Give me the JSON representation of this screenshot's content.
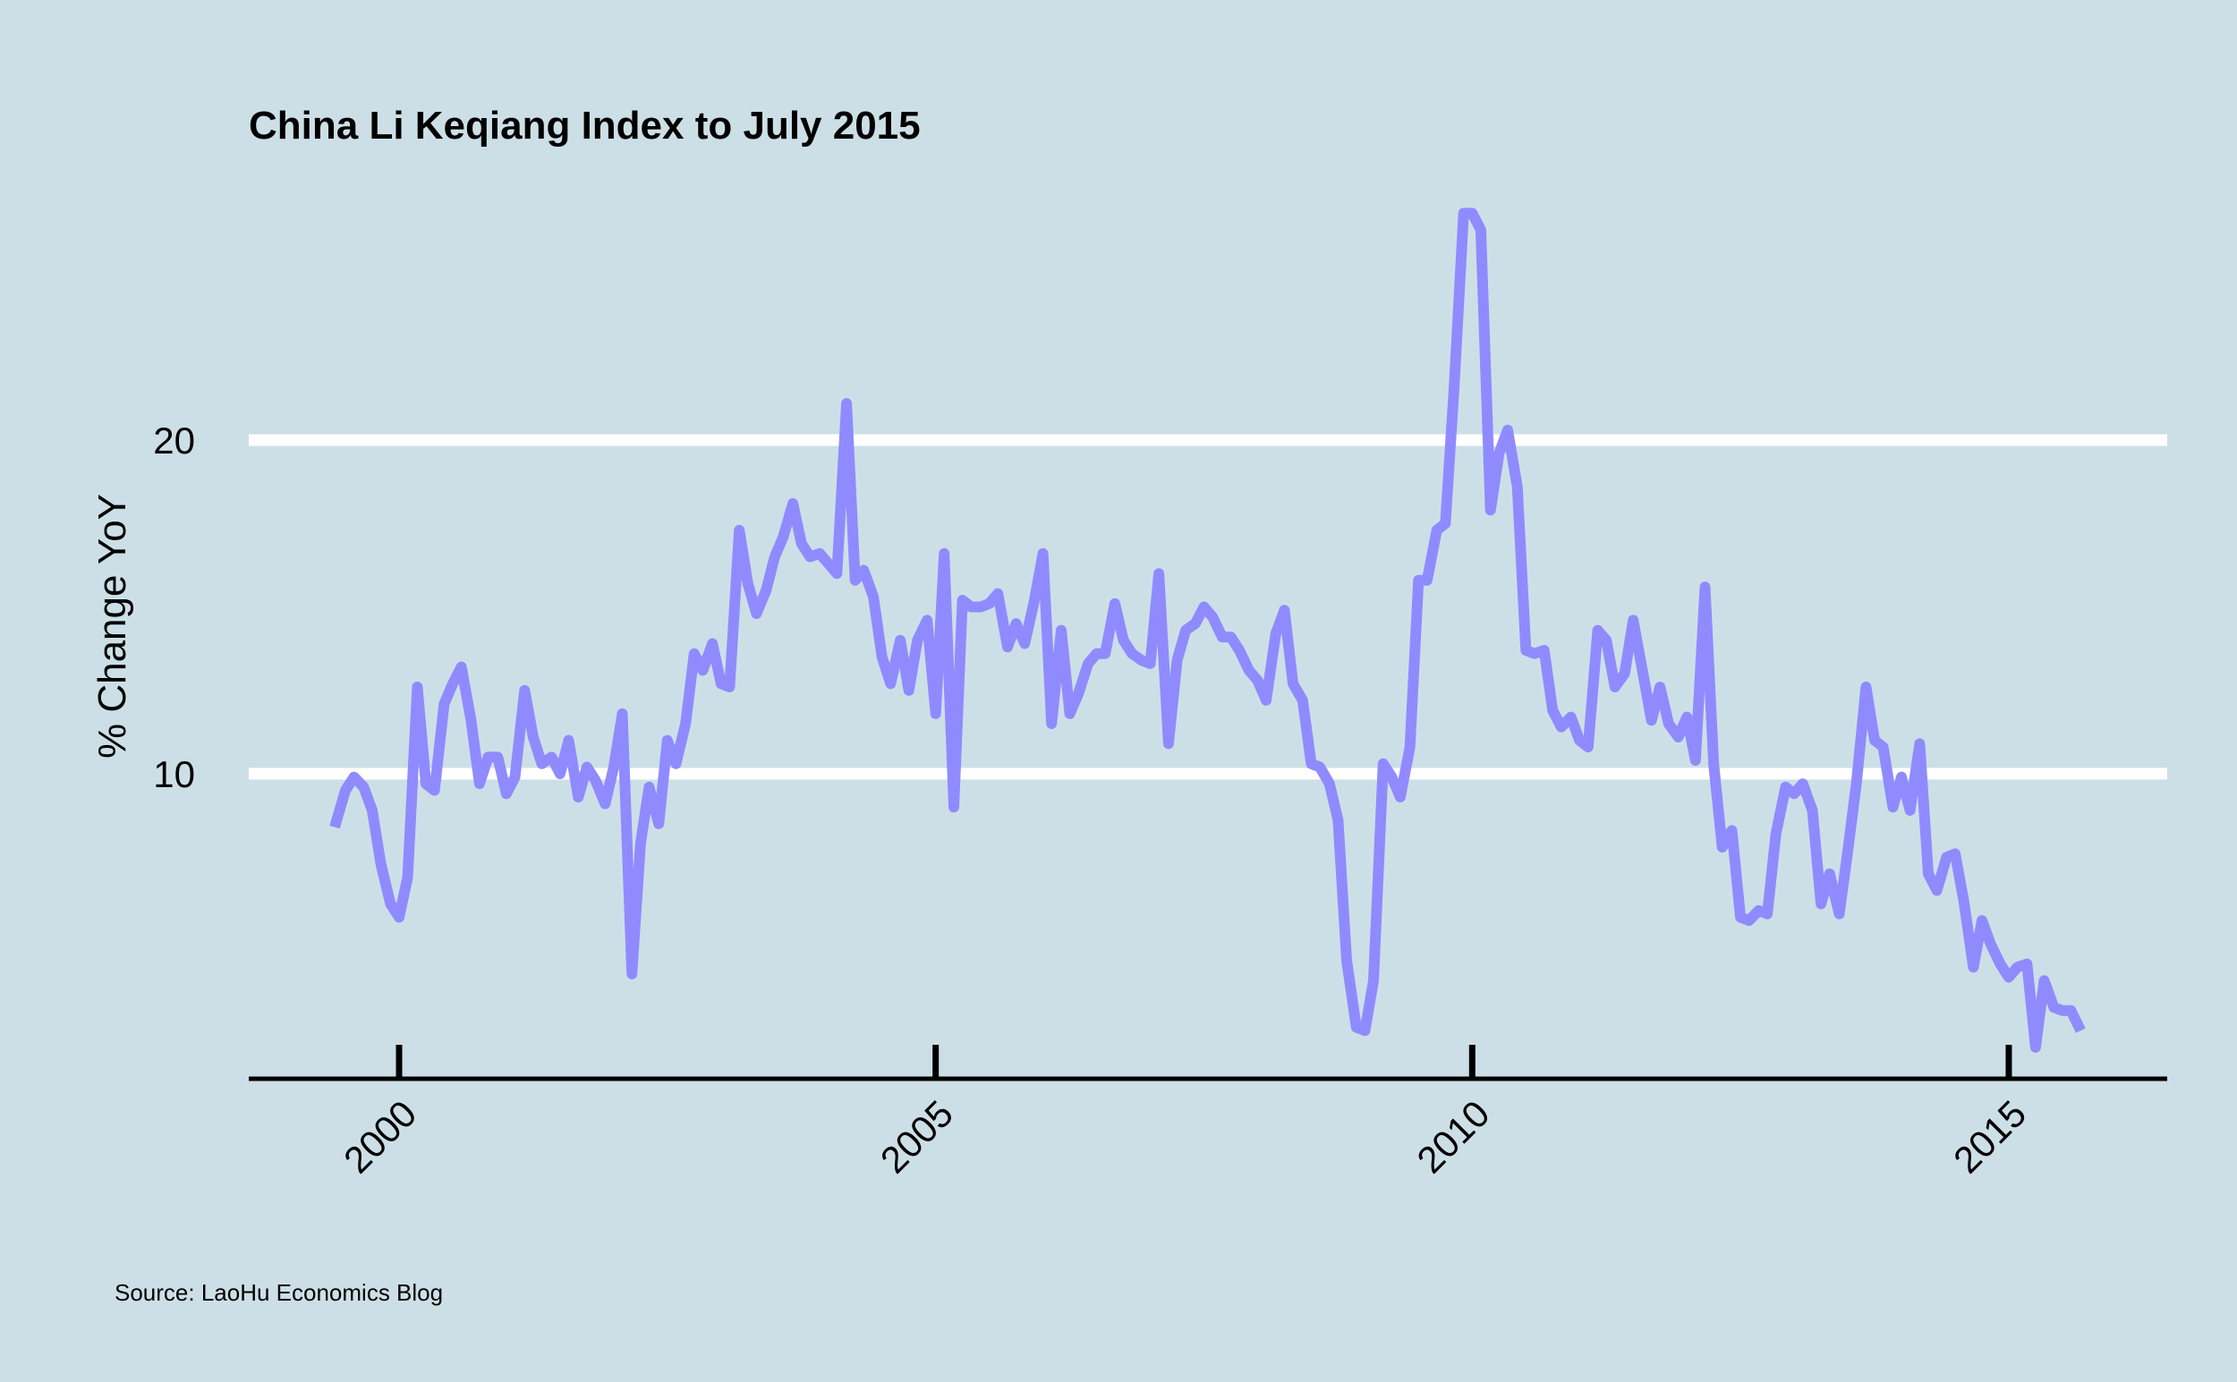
{
  "chart_data": {
    "type": "line",
    "title": "China Li Keqiang Index to July 2015",
    "ylabel": "% Change YoY",
    "xlabel": "",
    "caption": "Source: LaoHu Economics Blog",
    "yticks": [
      10,
      20
    ],
    "xticks": [
      "2000",
      "2005",
      "2010",
      "2015"
    ],
    "xlim": [
      1998.6,
      2016.45
    ],
    "ylim": [
      0.6,
      27.8
    ],
    "grid": "horizontal",
    "line_color": "#8f8bff",
    "series": [
      {
        "x": [
          1999.4,
          1999.5,
          1999.58,
          1999.67,
          1999.75,
          1999.83,
          1999.92,
          2000.0,
          2000.08,
          2000.17,
          2000.25,
          2000.33,
          2000.42,
          2000.5,
          2000.58,
          2000.67,
          2000.75,
          2000.83,
          2000.92,
          2001.0,
          2001.08,
          2001.17,
          2001.25,
          2001.33,
          2001.42,
          2001.5,
          2001.58,
          2001.67,
          2001.75,
          2001.83,
          2001.92,
          2002.0,
          2002.08,
          2002.17,
          2002.25,
          2002.33,
          2002.42,
          2002.5,
          2002.58,
          2002.67,
          2002.75,
          2002.83,
          2002.92,
          2003.0,
          2003.08,
          2003.17,
          2003.25,
          2003.33,
          2003.42,
          2003.5,
          2003.58,
          2003.67,
          2003.75,
          2003.83,
          2003.92,
          2004.0,
          2004.08,
          2004.17,
          2004.25,
          2004.33,
          2004.42,
          2004.5,
          2004.58,
          2004.67,
          2004.75,
          2004.83,
          2004.92,
          2005.0,
          2005.08,
          2005.17,
          2005.25,
          2005.33,
          2005.42,
          2005.5,
          2005.58,
          2005.67,
          2005.75,
          2005.83,
          2005.92,
          2006.0,
          2006.08,
          2006.17,
          2006.25,
          2006.33,
          2006.42,
          2006.5,
          2006.58,
          2006.67,
          2006.75,
          2006.83,
          2006.92,
          2007.0,
          2007.08,
          2007.17,
          2007.25,
          2007.33,
          2007.42,
          2007.5,
          2007.58,
          2007.67,
          2007.75,
          2007.83,
          2007.92,
          2008.0,
          2008.08,
          2008.17,
          2008.25,
          2008.33,
          2008.42,
          2008.5,
          2008.58,
          2008.67,
          2008.75,
          2008.83,
          2008.92,
          2009.0,
          2009.08,
          2009.17,
          2009.25,
          2009.33,
          2009.42,
          2009.5,
          2009.58,
          2009.67,
          2009.75,
          2009.83,
          2009.92,
          2010.0,
          2010.08,
          2010.17,
          2010.25,
          2010.33,
          2010.42,
          2010.5,
          2010.58,
          2010.67,
          2010.75,
          2010.83,
          2010.92,
          2011.0,
          2011.08,
          2011.17,
          2011.25,
          2011.33,
          2011.42,
          2011.5,
          2011.58,
          2011.67,
          2011.75,
          2011.83,
          2011.92,
          2012.0,
          2012.08,
          2012.17,
          2012.25,
          2012.33,
          2012.42,
          2012.5,
          2012.58,
          2012.67,
          2012.75,
          2012.83,
          2012.92,
          2013.0,
          2013.08,
          2013.17,
          2013.25,
          2013.33,
          2013.42,
          2013.5,
          2013.58,
          2013.67,
          2013.75,
          2013.83,
          2013.92,
          2014.0,
          2014.08,
          2014.17,
          2014.25,
          2014.33,
          2014.42,
          2014.5,
          2014.58,
          2014.67,
          2014.75,
          2014.83,
          2014.92,
          2015.0,
          2015.08,
          2015.17,
          2015.25,
          2015.33,
          2015.42,
          2015.5,
          2015.58,
          2015.67
        ],
        "y": [
          8.4,
          9.5,
          9.9,
          9.6,
          8.9,
          7.3,
          6.1,
          5.7,
          6.9,
          12.6,
          9.7,
          9.5,
          12.1,
          12.7,
          13.2,
          11.6,
          9.7,
          10.5,
          10.5,
          9.4,
          9.9,
          12.5,
          11.1,
          10.3,
          10.5,
          10.0,
          11.0,
          9.3,
          10.2,
          9.8,
          9.1,
          10.2,
          11.8,
          4.0,
          7.9,
          9.6,
          8.5,
          11.0,
          10.3,
          11.5,
          13.6,
          13.1,
          13.9,
          12.7,
          12.6,
          17.3,
          15.7,
          14.8,
          15.5,
          16.5,
          17.1,
          18.1,
          16.9,
          16.5,
          16.6,
          16.3,
          16.0,
          21.1,
          15.8,
          16.1,
          15.3,
          13.5,
          12.7,
          14.0,
          12.5,
          14.0,
          14.6,
          11.8,
          16.6,
          9.0,
          15.2,
          15.0,
          15.0,
          15.1,
          15.4,
          13.8,
          14.5,
          13.9,
          15.2,
          16.6,
          11.5,
          14.3,
          11.8,
          12.4,
          13.3,
          13.6,
          13.6,
          15.1,
          14.0,
          13.6,
          13.4,
          13.3,
          16.0,
          10.9,
          13.4,
          14.3,
          14.5,
          15.0,
          14.7,
          14.1,
          14.1,
          13.7,
          13.1,
          12.8,
          12.2,
          14.2,
          14.9,
          12.7,
          12.2,
          10.3,
          10.2,
          9.7,
          8.6,
          4.4,
          2.4,
          2.3,
          3.8,
          10.3,
          9.9,
          9.3,
          10.8,
          15.8,
          15.8,
          17.3,
          17.5,
          21.5,
          26.8,
          26.8,
          26.3,
          17.9,
          19.6,
          20.3,
          18.6,
          13.7,
          13.6,
          13.7,
          11.9,
          11.4,
          11.7,
          11.0,
          10.8,
          14.3,
          14.0,
          12.6,
          13.0,
          14.6,
          13.2,
          11.6,
          12.6,
          11.5,
          11.1,
          11.7,
          10.4,
          15.6,
          10.3,
          7.8,
          8.3,
          5.7,
          5.6,
          5.9,
          5.8,
          8.2,
          9.6,
          9.4,
          9.7,
          8.9,
          6.1,
          7.0,
          5.8,
          7.7,
          9.7,
          12.6,
          11.0,
          10.8,
          9.0,
          9.9,
          8.9,
          10.9,
          7.0,
          6.5,
          7.5,
          7.6,
          6.2,
          4.2,
          5.6,
          4.9,
          4.3,
          3.9,
          4.2,
          4.3,
          1.8,
          3.8,
          3.0,
          2.9,
          2.9,
          2.3
        ]
      }
    ]
  }
}
